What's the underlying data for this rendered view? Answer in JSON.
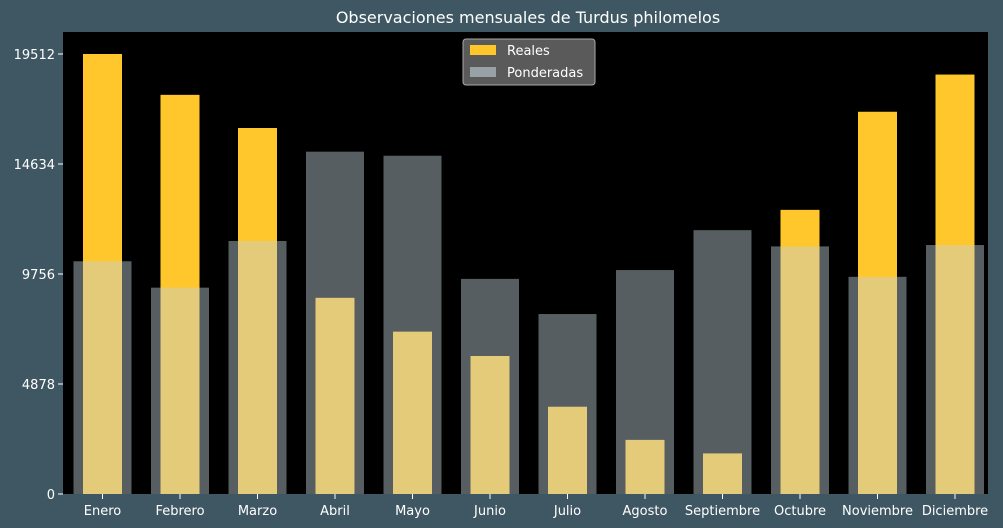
{
  "chart_data": {
    "type": "bar",
    "title": "Observaciones mensuales de Turdus philomelos",
    "categories": [
      "Enero",
      "Febrero",
      "Marzo",
      "Abril",
      "Mayo",
      "Junio",
      "Julio",
      "Agosto",
      "Septiembre",
      "Octubre",
      "Noviembre",
      "Diciembre"
    ],
    "series": [
      {
        "name": "Reales",
        "color": "#ffc72c",
        "values": [
          19512,
          17700,
          16230,
          8700,
          7200,
          6120,
          3870,
          2400,
          1800,
          12600,
          16950,
          18600
        ]
      },
      {
        "name": "Ponderadas",
        "color": "#c0d0d8",
        "values": [
          10320,
          9150,
          11220,
          15180,
          15000,
          9540,
          7980,
          9930,
          11700,
          10980,
          9630,
          11040
        ]
      }
    ],
    "yticks": [
      0,
      4878,
      9756,
      14634,
      19512
    ],
    "ylim": [
      0,
      20487
    ],
    "xlabel": "",
    "ylabel": "",
    "legend_position": "top-center",
    "grid": false,
    "colors": {
      "background": "#3f5763",
      "plot_area": "#000000",
      "text": "#ffffff"
    }
  }
}
